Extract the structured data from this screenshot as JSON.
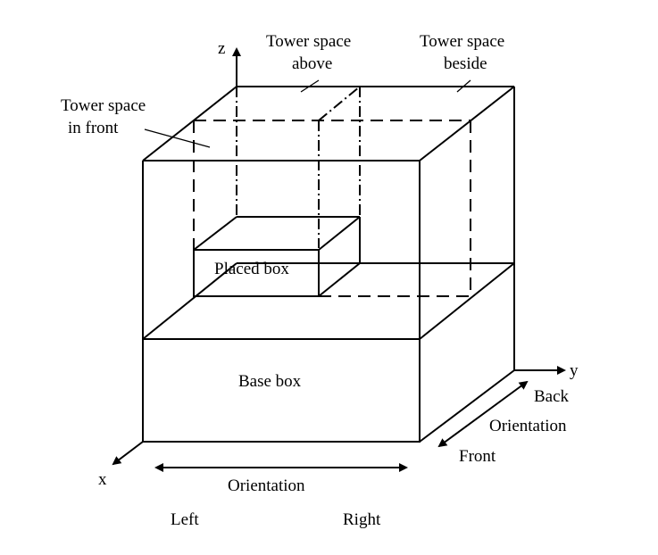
{
  "labels": {
    "tower_above_1": "Tower space",
    "tower_above_2": "above",
    "tower_beside_1": "Tower space",
    "tower_beside_2": "beside",
    "tower_front_1": "Tower space",
    "tower_front_2": "in front",
    "placed_box": "Placed box",
    "base_box": "Base box",
    "axis_z": "z",
    "axis_y": "y",
    "axis_x": "x",
    "back": "Back",
    "orientation_depth": "Orientation",
    "front": "Front",
    "orientation_width": "Orientation",
    "left": "Left",
    "right": "Right"
  },
  "colors": {
    "line": "#000000",
    "background": "#ffffff"
  }
}
